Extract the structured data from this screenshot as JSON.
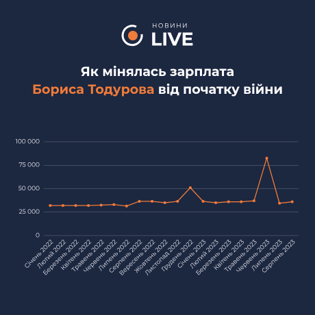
{
  "header": {
    "kicker": "НОВИНИ",
    "brand": "LIVE"
  },
  "chart_data": {
    "type": "line",
    "title": {
      "line1": "Як мінялась зарплата",
      "highlight": "Бориса Тодурова",
      "rest": "від початку війни"
    },
    "categories": [
      "Січень 2022",
      "Лютий 2022",
      "Березень 2022",
      "Квітень 2022",
      "Травень 2022",
      "Червень 2022",
      "Липень 2022",
      "Серпень 2022",
      "Вересень 2022",
      "Жовтень 2022",
      "Листопад 2022",
      "Грудень 2022",
      "Січень 2023",
      "Лютий 2023",
      "Березень 2023",
      "Квітень 2023",
      "Травень 2023",
      "Червень 2023",
      "Липень 2023",
      "Серпень 2023"
    ],
    "values": [
      32000,
      32000,
      32000,
      32000,
      32500,
      33000,
      31500,
      36500,
      36500,
      35000,
      36500,
      51000,
      36500,
      35000,
      36000,
      36000,
      37000,
      82500,
      34500,
      36000
    ],
    "color": "#f07b3a",
    "ylim": [
      0,
      100000
    ],
    "yticks": [
      0,
      {
        "value": 25000,
        "label": "25 000"
      },
      {
        "value": 50000,
        "label": "50 000"
      },
      {
        "value": 75000,
        "label": "75 000"
      },
      {
        "value": 100000,
        "label": "100 000"
      }
    ],
    "grid": true
  }
}
